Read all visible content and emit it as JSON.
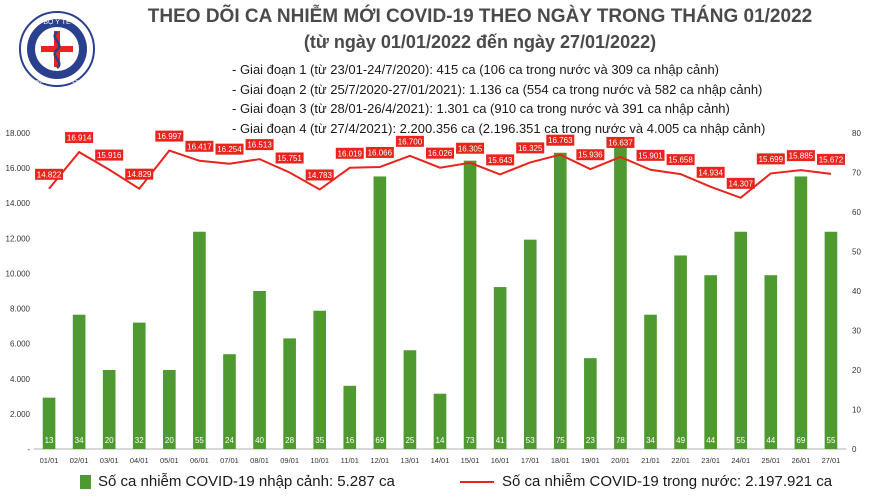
{
  "header": {
    "title": "THEO DÕI CA NHIỄM MỚI COVID-19 THEO NGÀY TRONG THÁNG 01/2022",
    "subtitle": "(từ ngày 01/01/2022 đến ngày 27/01/2022)",
    "logo_text": "BỘ Y TẾ",
    "logo_subtext": "MINISTRY OF HEALTH",
    "stages": [
      "- Giai đoạn 1 (từ 23/01-24/7/2020): 415 ca (106 ca trong nước và 309 ca nhập cảnh)",
      "- Giai đoạn 2 (từ 25/7/2020-27/01/2021): 1.136 ca (554 ca trong nước và 582 ca nhập cảnh)",
      "- Giai đoạn 3 (từ 28/01-26/4/2021): 1.301 ca (910 ca trong nước và 391 ca nhập cảnh)",
      "- Giai đoạn 4 (từ 27/4/2021): 2.200.356 ca (2.196.351 ca trong nước và 4.005 ca nhập cảnh)"
    ]
  },
  "legend": {
    "bar_label": "Số ca nhiễm COVID-19 nhập cảnh: 5.287 ca",
    "line_label": "Số ca nhiễm COVID-19 trong nước: 2.197.921 ca"
  },
  "colors": {
    "bar": "#4f9a30",
    "line": "#e8241d",
    "label_box": "#e8241d"
  },
  "chart_data": {
    "type": "bar+line",
    "categories": [
      "01/01",
      "02/01",
      "03/01",
      "04/01",
      "05/01",
      "06/01",
      "07/01",
      "08/01",
      "09/01",
      "10/01",
      "11/01",
      "12/01",
      "13/01",
      "14/01",
      "15/01",
      "16/01",
      "17/01",
      "18/01",
      "19/01",
      "20/01",
      "21/01",
      "22/01",
      "23/01",
      "24/01",
      "25/01",
      "26/01",
      "27/01"
    ],
    "series": [
      {
        "name": "Số ca nhiễm COVID-19 nhập cảnh",
        "type": "bar",
        "axis": "right",
        "values": [
          13,
          34,
          20,
          32,
          20,
          55,
          24,
          40,
          28,
          35,
          16,
          69,
          25,
          14,
          73,
          41,
          53,
          75,
          23,
          78,
          34,
          49,
          44,
          55,
          44,
          69,
          55
        ],
        "labels": [
          "13",
          "34",
          "20",
          "32",
          "20",
          "55",
          "24",
          "40",
          "28",
          "35",
          "16",
          "69",
          "25",
          "14",
          "73",
          "41",
          "53",
          "75",
          "23",
          "78",
          "34",
          "49",
          "44",
          "55",
          "44",
          "69",
          "55"
        ]
      },
      {
        "name": "Số ca nhiễm COVID-19 trong nước",
        "type": "line",
        "axis": "left",
        "values": [
          14822,
          16914,
          15916,
          14829,
          16997,
          16417,
          16254,
          16513,
          15751,
          14783,
          16019,
          16066,
          16700,
          16026,
          16305,
          15643,
          16325,
          16763,
          15936,
          16637,
          15901,
          15658,
          14934,
          14307,
          15699,
          15885,
          15672
        ],
        "labels": [
          "14.822",
          "16.914",
          "15.916",
          "14.829",
          "16.997",
          "16.417",
          "16.254",
          "16.513",
          "15.751",
          "14.783",
          "16.019",
          "16.066",
          "16.700",
          "16.026",
          "16.305",
          "15.643",
          "16.325",
          "16.763",
          "15.936",
          "16.637",
          "15.901",
          "15.658",
          "14.934",
          "14.307",
          "15.699",
          "15.885",
          "15.672"
        ]
      }
    ],
    "y_left": {
      "min": 0,
      "max": 18000,
      "ticks": [
        0,
        2000,
        4000,
        6000,
        8000,
        10000,
        12000,
        14000,
        16000,
        18000
      ],
      "tick_labels": [
        "-",
        "2.000",
        "4.000",
        "6.000",
        "8.000",
        "10.000",
        "12.000",
        "14.000",
        "16.000",
        "18.000"
      ]
    },
    "y_right": {
      "min": 0,
      "max": 80,
      "ticks": [
        0,
        10,
        20,
        30,
        40,
        50,
        60,
        70,
        80
      ],
      "tick_labels": [
        "0",
        "10",
        "20",
        "30",
        "40",
        "50",
        "60",
        "70",
        "80"
      ]
    },
    "grid": false,
    "legend_position": "bottom"
  }
}
